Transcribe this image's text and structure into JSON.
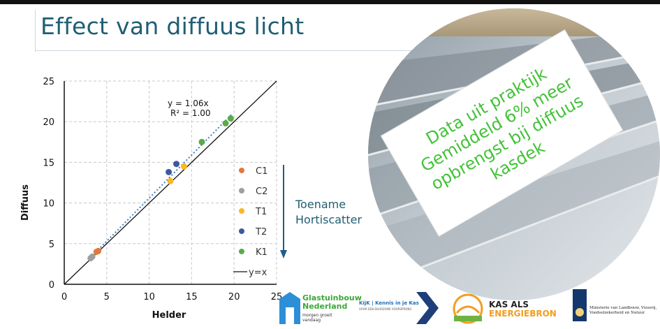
{
  "page": {
    "title": "Effect van diffuus licht"
  },
  "chart_data": {
    "type": "scatter",
    "xlabel": "Helder",
    "ylabel": "Diffuus",
    "xlim": [
      0,
      25
    ],
    "ylim": [
      0,
      25
    ],
    "xticks": [
      0,
      5,
      10,
      15,
      20,
      25
    ],
    "yticks": [
      0,
      5,
      10,
      15,
      20,
      25
    ],
    "grid": true,
    "legend_position": "right",
    "series": [
      {
        "name": "C1",
        "color": "#e07a3f",
        "points": [
          [
            3.8,
            4.0
          ],
          [
            4.0,
            4.1
          ]
        ]
      },
      {
        "name": "C2",
        "color": "#9e9e9e",
        "points": [
          [
            3.1,
            3.2
          ],
          [
            3.3,
            3.4
          ]
        ]
      },
      {
        "name": "T1",
        "color": "#f9b824",
        "points": [
          [
            12.5,
            12.7
          ],
          [
            14.1,
            14.5
          ]
        ]
      },
      {
        "name": "T2",
        "color": "#3e5a9e",
        "points": [
          [
            12.3,
            13.8
          ],
          [
            13.2,
            14.8
          ]
        ]
      },
      {
        "name": "K1",
        "color": "#5aaa4b",
        "points": [
          [
            16.2,
            17.5
          ],
          [
            19.0,
            19.8
          ],
          [
            19.6,
            20.4
          ]
        ]
      }
    ],
    "reference_line": {
      "name": "y=x",
      "slope": 1
    },
    "trendline": {
      "slope": 1.06,
      "from": 3.1,
      "to": 19.8
    },
    "equation": [
      "y = 1.06x",
      "R² = 1.00"
    ]
  },
  "annotation": {
    "line1": "Toename",
    "line2": "Hortiscatter"
  },
  "callout": {
    "line1": "Data uit praktijk",
    "line2": "Gemiddeld 6% meer",
    "line3": "opbrengst bij diffuus",
    "line4": "kasdek"
  },
  "logos": {
    "glastuinbouw": {
      "line1": "Glastuinbouw",
      "line2": "Nederland",
      "tagline": "morgen groeit vandaag"
    },
    "kijk": {
      "title": "KijK | Kennis in je Kas",
      "tagline": "VOOR EEN DUURZAME VOORSPRONG"
    },
    "kas": {
      "line1": "KAS ALS",
      "line2": "ENERGIEBRON"
    },
    "ministerie": {
      "line1": "Ministerie van Landbouw, Visserij,",
      "line2": "Voedselzekerheid en Natuur"
    }
  }
}
